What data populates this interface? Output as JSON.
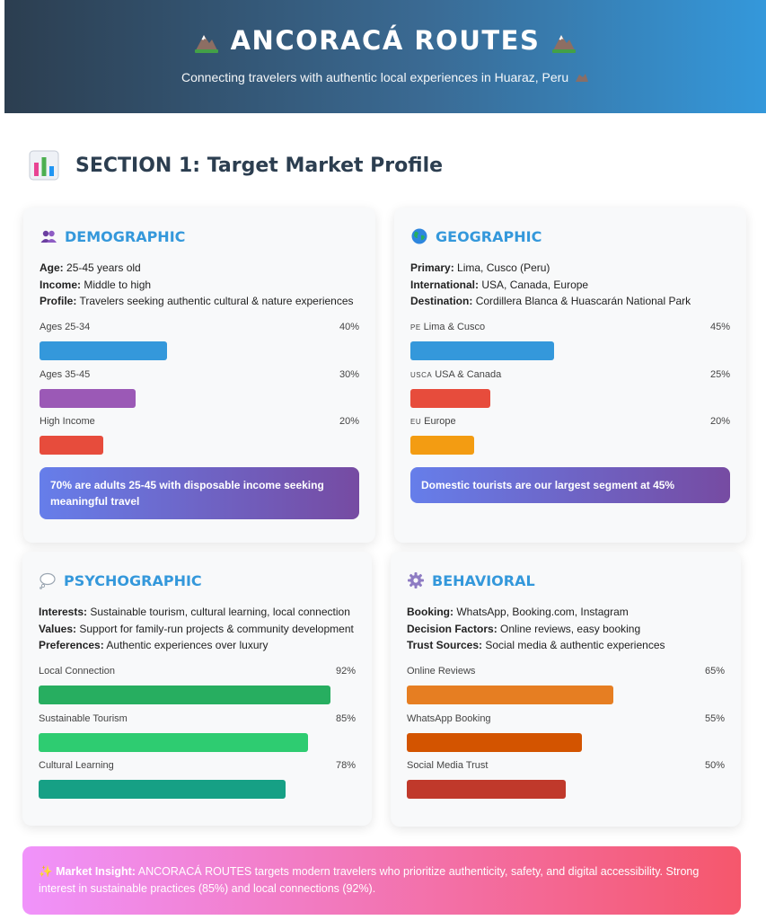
{
  "header": {
    "title": "ANCORACÁ ROUTES",
    "subtitle": "Connecting travelers with authentic local experiences in Huaraz, Peru"
  },
  "section": {
    "title": "SECTION 1: Target Market Profile",
    "icon": "bar-chart-icon"
  },
  "cards": {
    "demographic": {
      "title": "DEMOGRAPHIC",
      "icon": "people-icon",
      "info": [
        {
          "key": "Age:",
          "value": "25-45 years old"
        },
        {
          "key": "Income:",
          "value": "Middle to high"
        },
        {
          "key": "Profile:",
          "value": "Travelers seeking authentic cultural & nature experiences"
        }
      ],
      "bars": [
        {
          "label": "Ages 25-34",
          "pct": "40%",
          "value": 40,
          "color": "#3498db"
        },
        {
          "label": "Ages 35-45",
          "pct": "30%",
          "value": 30,
          "color": "#9b59b6"
        },
        {
          "label": "High Income",
          "pct": "20%",
          "value": 20,
          "color": "#e74c3c"
        }
      ],
      "insight": "70% are adults 25-45 with disposable income seeking meaningful travel"
    },
    "geographic": {
      "title": "GEOGRAPHIC",
      "icon": "globe-icon",
      "info": [
        {
          "key": "Primary:",
          "value": "Lima, Cusco (Peru)"
        },
        {
          "key": "International:",
          "value": "USA, Canada, Europe"
        },
        {
          "key": "Destination:",
          "value": "Cordillera Blanca & Huascarán National Park"
        }
      ],
      "bars": [
        {
          "flag": "PE",
          "label": "Lima & Cusco",
          "pct": "45%",
          "value": 45,
          "color": "#3498db"
        },
        {
          "flag": "USCA",
          "label": "USA & Canada",
          "pct": "25%",
          "value": 25,
          "color": "#e74c3c"
        },
        {
          "flag": "EU",
          "label": "Europe",
          "pct": "20%",
          "value": 20,
          "color": "#f39c12"
        }
      ],
      "insight": "Domestic tourists are our largest segment at 45%"
    },
    "psychographic": {
      "title": "PSYCHOGRAPHIC",
      "icon": "thought-bubble-icon",
      "info": [
        {
          "key": "Interests:",
          "value": "Sustainable tourism, cultural learning, local connection"
        },
        {
          "key": "Values:",
          "value": "Support for family-run projects & community development"
        },
        {
          "key": "Preferences:",
          "value": "Authentic experiences over luxury"
        }
      ],
      "bars": [
        {
          "label": "Local Connection",
          "pct": "92%",
          "value": 92,
          "color": "#27ae60"
        },
        {
          "label": "Sustainable Tourism",
          "pct": "85%",
          "value": 85,
          "color": "#2ecc71"
        },
        {
          "label": "Cultural Learning",
          "pct": "78%",
          "value": 78,
          "color": "#16a085"
        }
      ]
    },
    "behavioral": {
      "title": "BEHAVIORAL",
      "icon": "gear-icon",
      "info": [
        {
          "key": "Booking:",
          "value": "WhatsApp, Booking.com, Instagram"
        },
        {
          "key": "Decision Factors:",
          "value": "Online reviews, easy booking"
        },
        {
          "key": "Trust Sources:",
          "value": "Social media & authentic experiences"
        }
      ],
      "bars": [
        {
          "label": "Online Reviews",
          "pct": "65%",
          "value": 65,
          "color": "#e67e22"
        },
        {
          "label": "WhatsApp Booking",
          "pct": "55%",
          "value": 55,
          "color": "#d35400"
        },
        {
          "label": "Social Media Trust",
          "pct": "50%",
          "value": 50,
          "color": "#c0392b"
        }
      ]
    }
  },
  "market_insight": {
    "icon": "sparkles-icon",
    "label": "Market Insight:",
    "text": "ANCORACÁ ROUTES targets modern travelers who prioritize authenticity, safety, and digital accessibility. Strong interest in sustainable practices (85%) and local connections (92%)."
  }
}
